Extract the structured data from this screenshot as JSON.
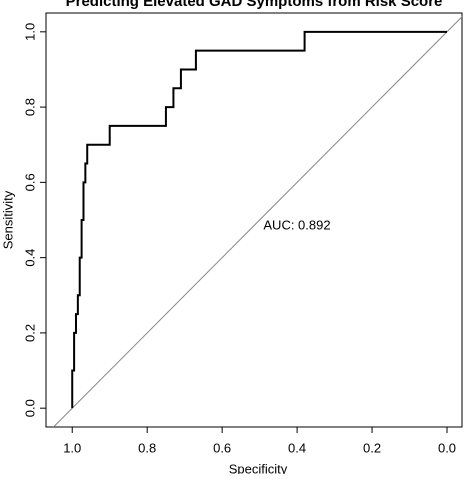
{
  "chart_data": {
    "type": "line",
    "title": "Predicting Elevated GAD Symptoms from Risk Score",
    "x_label": "Specificity",
    "y_label": "Sensitivity",
    "annotation": "AUC: 0.892",
    "xlim": [
      1.07,
      -0.04
    ],
    "ylim": [
      -0.05,
      1.05
    ],
    "xticks": [
      {
        "value": 1,
        "label": "1.0"
      },
      0.8,
      0.6,
      0.4,
      0.2,
      {
        "value": 0,
        "label": "0.0"
      }
    ],
    "yticks": [
      {
        "value": 0,
        "label": "0.0"
      },
      0.2,
      0.4,
      0.6,
      0.8,
      {
        "value": 1,
        "label": "1.0"
      }
    ],
    "reference_line": true,
    "series": [
      {
        "color": "#000000",
        "x": [
          1.0,
          1.0,
          0.995,
          0.995,
          0.99,
          0.99,
          0.985,
          0.985,
          0.98,
          0.98,
          0.975,
          0.975,
          0.97,
          0.97,
          0.965,
          0.965,
          0.96,
          0.96,
          0.9,
          0.9,
          0.75,
          0.75,
          0.73,
          0.73,
          0.71,
          0.71,
          0.67,
          0.67,
          0.38,
          0.38,
          0.0
        ],
        "values": [
          0,
          0.1,
          0.1,
          0.2,
          0.2,
          0.25,
          0.25,
          0.3,
          0.3,
          0.4,
          0.4,
          0.5,
          0.5,
          0.6,
          0.6,
          0.65,
          0.65,
          0.7,
          0.7,
          0.75,
          0.75,
          0.8,
          0.8,
          0.85,
          0.85,
          0.9,
          0.9,
          0.95,
          0.95,
          1.0,
          1.0
        ]
      }
    ]
  }
}
